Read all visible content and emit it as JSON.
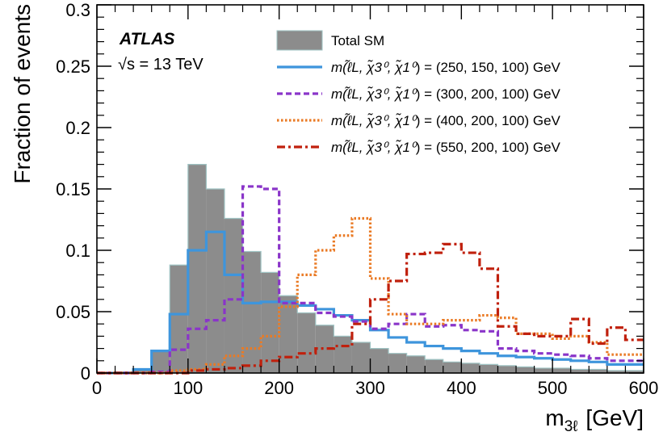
{
  "chart_data": {
    "type": "histogram",
    "xlabel": "m",
    "xlabel_sub": "3ℓ",
    "xlabel_unit": "[GeV]",
    "ylabel": "Fraction of events",
    "xlim": [
      0,
      600
    ],
    "ylim": [
      0,
      0.3
    ],
    "x_ticks": [
      0,
      100,
      200,
      300,
      400,
      500,
      600
    ],
    "x_tick_labels": [
      "0",
      "100",
      "200",
      "300",
      "400",
      "500",
      "600"
    ],
    "y_ticks": [
      0,
      0.05,
      0.1,
      0.15,
      0.2,
      0.25,
      0.3
    ],
    "y_tick_labels": [
      "0",
      "0.05",
      "0.1",
      "0.15",
      "0.2",
      "0.25",
      "0.3"
    ],
    "bin_edges": [
      0,
      20,
      40,
      60,
      80,
      100,
      120,
      140,
      160,
      180,
      200,
      220,
      240,
      260,
      280,
      300,
      320,
      340,
      360,
      380,
      400,
      420,
      440,
      460,
      480,
      500,
      520,
      540,
      560,
      580,
      600
    ],
    "legend_position": "top-right",
    "annotations": {
      "experiment": "ATLAS",
      "energy": "√s = 13 TeV"
    },
    "series": [
      {
        "name": "Total SM",
        "style": "filled",
        "color": "#8c8c8c",
        "edge_color": "#9fc3c3",
        "values": [
          0,
          0.001,
          0.003,
          0.018,
          0.088,
          0.17,
          0.15,
          0.126,
          0.099,
          0.082,
          0.063,
          0.049,
          0.039,
          0.03,
          0.025,
          0.02,
          0.016,
          0.014,
          0.011,
          0.009,
          0.008,
          0.007,
          0.006,
          0.005,
          0.004,
          0.004,
          0.003,
          0.003,
          0.002,
          0.002
        ]
      },
      {
        "name": "m(ℓ̃L, χ̃3⁰, χ̃1⁰) = (250, 150, 100) GeV",
        "legend": {
          "prefix": "m(",
          "params": "ℓ̃L, χ̃3⁰, χ̃1⁰",
          "suffix": ") = (250, 150, 100) GeV"
        },
        "style": "solid",
        "color": "#3e95dc",
        "values": [
          0,
          0,
          0.003,
          0.018,
          0.048,
          0.1,
          0.115,
          0.08,
          0.057,
          0.058,
          0.058,
          0.055,
          0.052,
          0.047,
          0.043,
          0.035,
          0.029,
          0.025,
          0.022,
          0.02,
          0.018,
          0.016,
          0.014,
          0.013,
          0.012,
          0.011,
          0.01,
          0.009,
          0.007,
          0.007
        ]
      },
      {
        "name": "m(ℓ̃L, χ̃3⁰, χ̃1⁰) = (300, 200, 100) GeV",
        "legend": {
          "prefix": "m(",
          "params": "ℓ̃L, χ̃3⁰, χ̃1⁰",
          "suffix": ") = (300, 200, 100) GeV"
        },
        "style": "dashed",
        "color": "#8a35c9",
        "values": [
          0,
          0,
          0,
          0.001,
          0.019,
          0.036,
          0.043,
          0.06,
          0.152,
          0.15,
          0.057,
          0.057,
          0.049,
          0.046,
          0.042,
          0.036,
          0.04,
          0.048,
          0.038,
          0.039,
          0.035,
          0.034,
          0.02,
          0.018,
          0.016,
          0.015,
          0.014,
          0.012,
          0.01,
          0.01
        ]
      },
      {
        "name": "m(ℓ̃L, χ̃3⁰, χ̃1⁰) = (400, 200, 100) GeV",
        "legend": {
          "prefix": "m(",
          "params": "ℓ̃L, χ̃3⁰, χ̃1⁰",
          "suffix": ") = (400, 200, 100) GeV"
        },
        "style": "dotted",
        "color": "#ea7a24",
        "values": [
          0,
          0,
          0,
          0,
          0.002,
          0.003,
          0.007,
          0.014,
          0.02,
          0.03,
          0.054,
          0.08,
          0.1,
          0.112,
          0.126,
          0.077,
          0.048,
          0.04,
          0.04,
          0.043,
          0.043,
          0.047,
          0.045,
          0.032,
          0.032,
          0.028,
          0.03,
          0.025,
          0.015,
          0.015
        ]
      },
      {
        "name": "m(ℓ̃L, χ̃3⁰, χ̃1⁰) = (550, 200, 100) GeV",
        "legend": {
          "prefix": "m(",
          "params": "ℓ̃L, χ̃3⁰, χ̃1⁰",
          "suffix": ") = (550, 200, 100) GeV"
        },
        "style": "dashdot",
        "color": "#c0200d",
        "values": [
          0,
          0,
          0,
          0,
          0,
          0.002,
          0.003,
          0.004,
          0.006,
          0.01,
          0.013,
          0.016,
          0.02,
          0.022,
          0.04,
          0.06,
          0.075,
          0.097,
          0.098,
          0.105,
          0.098,
          0.085,
          0.038,
          0.032,
          0.03,
          0.03,
          0.044,
          0.024,
          0.037,
          0.027
        ]
      }
    ]
  }
}
